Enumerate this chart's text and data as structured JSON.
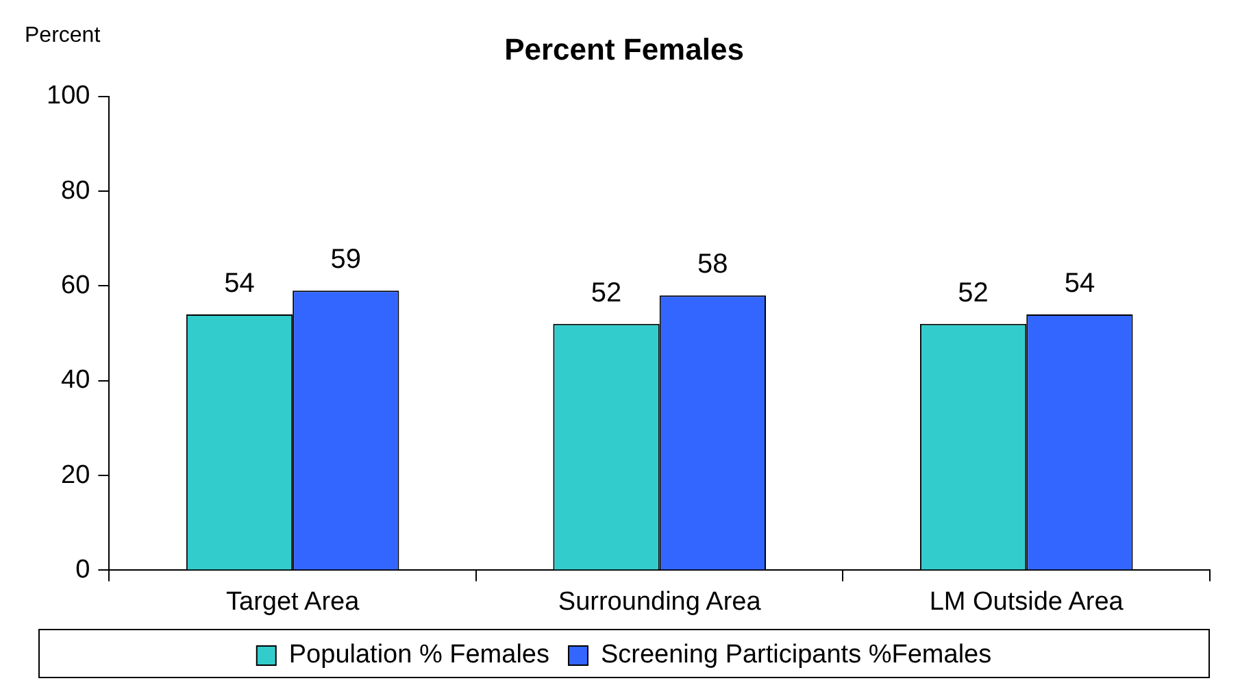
{
  "chart_data": {
    "type": "bar",
    "title": "Percent Females",
    "ylabel": "Percent",
    "categories": [
      "Target Area",
      "Surrounding Area",
      "LM Outside Area"
    ],
    "series": [
      {
        "name": "Population % Females",
        "color": "#33cccc",
        "values": [
          54,
          52,
          52
        ]
      },
      {
        "name": "Screening Participants %Females",
        "color": "#3366ff",
        "values": [
          59,
          58,
          54
        ]
      }
    ],
    "ylim": [
      0,
      100
    ],
    "yticks": [
      0,
      20,
      40,
      60,
      80,
      100
    ],
    "grid": false,
    "legend": "bottom",
    "data_labels": true
  }
}
